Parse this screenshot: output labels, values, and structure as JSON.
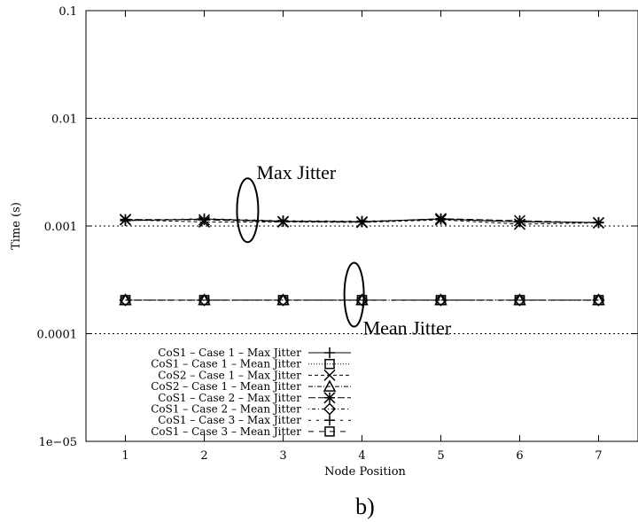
{
  "chart_data": {
    "type": "line",
    "xlabel": "Node Position",
    "ylabel": "Time (s)",
    "xlim": [
      0.5,
      7.5
    ],
    "ylim": [
      1e-05,
      0.1
    ],
    "yscale": "log",
    "x_ticks": [
      "1",
      "2",
      "3",
      "4",
      "5",
      "6",
      "7"
    ],
    "y_ticks": [
      {
        "value": 0.1,
        "label": "0.1"
      },
      {
        "value": 0.01,
        "label": "0.01"
      },
      {
        "value": 0.001,
        "label": "0.001"
      },
      {
        "value": 0.0001,
        "label": "0.0001"
      },
      {
        "value": 1e-05,
        "label": "1e−05"
      }
    ],
    "grid": "horizontal dotted at decades",
    "legend_position": "bottom-left",
    "x": [
      1,
      2,
      3,
      4,
      5,
      6,
      7
    ],
    "series": [
      {
        "name": "CoS1 – Case 1 – Max Jitter",
        "marker": "plus",
        "dash": "solid",
        "values": [
          0.00112,
          0.00116,
          0.00111,
          0.0011,
          0.00116,
          0.00109,
          0.00108
        ]
      },
      {
        "name": "CoS1 – Case 1 – Mean Jitter",
        "marker": "square",
        "dash": "dotted",
        "values": [
          0.000205,
          0.000205,
          0.000205,
          0.000205,
          0.000205,
          0.000205,
          0.000205
        ]
      },
      {
        "name": "CoS2 – Case 1 – Max Jitter",
        "marker": "cross",
        "dash": "dashed",
        "values": [
          0.00114,
          0.00109,
          0.00109,
          0.00108,
          0.00114,
          0.00104,
          0.00107
        ]
      },
      {
        "name": "CoS2 – Case 1 – Mean Jitter",
        "marker": "triangle",
        "dash": "dashdot",
        "values": [
          0.000205,
          0.000205,
          0.000205,
          0.000205,
          0.000205,
          0.000205,
          0.000205
        ]
      },
      {
        "name": "CoS1 – Case 2 – Max Jitter",
        "marker": "star",
        "dash": "longdash",
        "values": [
          0.00115,
          0.00114,
          0.0011,
          0.00109,
          0.00117,
          0.00112,
          0.00107
        ]
      },
      {
        "name": "CoS1 – Case 2 – Mean Jitter",
        "marker": "diamond",
        "dash": "dotdash",
        "values": [
          0.000205,
          0.000205,
          0.000205,
          0.000205,
          0.000205,
          0.000205,
          0.000205
        ]
      },
      {
        "name": "CoS1 – Case 3 – Max Jitter",
        "marker": "plus",
        "dash": "sparse",
        "values": [
          0.00113,
          0.00117,
          0.00112,
          0.00111,
          0.00115,
          0.0011,
          0.00108
        ]
      },
      {
        "name": "CoS1 – Case 3 – Mean Jitter",
        "marker": "square",
        "dash": "sparsedash",
        "values": [
          0.000205,
          0.000205,
          0.000205,
          0.000205,
          0.000205,
          0.000205,
          0.000205
        ]
      }
    ],
    "annotations": [
      {
        "text": "Max Jitter",
        "ellipse_center": [
          2.55,
          0.0014
        ]
      },
      {
        "text": "Mean Jitter",
        "ellipse_center": [
          3.9,
          0.00023
        ]
      }
    ],
    "caption": "b)"
  }
}
